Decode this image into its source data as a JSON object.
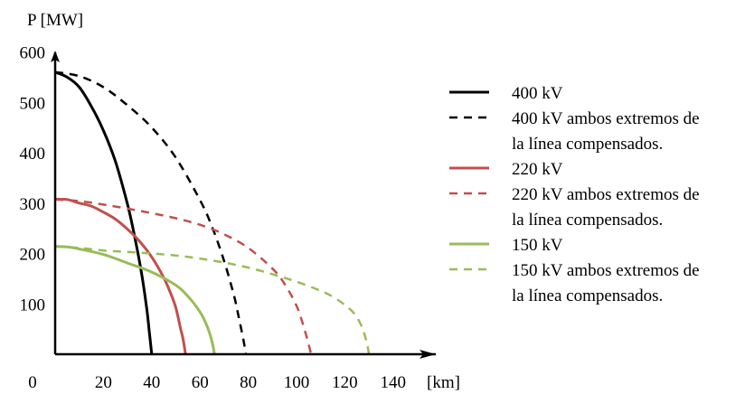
{
  "chart_data": {
    "type": "line",
    "title": "",
    "ylabel": "P [MW]",
    "xlabel": "[km]",
    "xlim": [
      0,
      150
    ],
    "ylim": [
      0,
      620
    ],
    "x_ticks": [
      0,
      20,
      40,
      60,
      80,
      100,
      120,
      140
    ],
    "y_ticks": [
      100,
      200,
      300,
      400,
      500,
      600
    ],
    "x_tick_labels": [
      "0",
      "20",
      "40",
      "60",
      "80",
      "100",
      "120",
      "140"
    ],
    "y_tick_labels": [
      "100",
      "200",
      "300",
      "400",
      "500",
      "600"
    ],
    "grid": false,
    "legend_position": "right",
    "series": [
      {
        "name": "400 kV",
        "color": "#000000",
        "dash": "solid",
        "legend_lines": [
          "400 kV"
        ],
        "x": [
          0,
          5,
          10,
          15,
          20,
          25,
          30,
          33,
          36,
          38,
          39,
          40
        ],
        "y": [
          560,
          550,
          530,
          492,
          444,
          382,
          297,
          232,
          155,
          88,
          45,
          0
        ]
      },
      {
        "name": "400 kV ambos extremos de la línea compensados.",
        "color": "#000000",
        "dash": "dashed",
        "legend_lines": [
          "400 kV ambos extremos de",
          "la línea compensados."
        ],
        "x": [
          0,
          10,
          20,
          30,
          40,
          50,
          60,
          65,
          70,
          74,
          76,
          78,
          79
        ],
        "y": [
          560,
          552,
          530,
          494,
          450,
          390,
          306,
          253,
          185,
          118,
          75,
          28,
          0
        ]
      },
      {
        "name": "220 kV",
        "color": "#c0504d",
        "dash": "solid",
        "legend_lines": [
          "220 kV"
        ],
        "x": [
          0,
          5,
          10,
          15,
          20,
          25,
          30,
          35,
          40,
          45,
          48,
          50,
          52,
          53,
          54
        ],
        "y": [
          308,
          307,
          300,
          294,
          282,
          268,
          248,
          224,
          193,
          152,
          119,
          92,
          50,
          30,
          0
        ]
      },
      {
        "name": "220 kV ambos extremos de la línea compensados.",
        "color": "#c0504d",
        "dash": "dashed",
        "legend_lines": [
          "220 kV ambos extremos de",
          "la línea compensados."
        ],
        "x": [
          0,
          10,
          20,
          30,
          40,
          50,
          60,
          70,
          80,
          90,
          95,
          100,
          103,
          105,
          106
        ],
        "y": [
          307,
          304,
          297,
          289,
          280,
          270,
          257,
          238,
          211,
          170,
          140,
          96,
          54,
          20,
          0
        ]
      },
      {
        "name": "150 kV",
        "color": "#9bbb59",
        "dash": "solid",
        "legend_lines": [
          "150 kV"
        ],
        "x": [
          0,
          5,
          10,
          20,
          30,
          40,
          50,
          55,
          60,
          63,
          65,
          66
        ],
        "y": [
          214,
          213,
          209,
          198,
          181,
          163,
          137,
          115,
          84,
          55,
          25,
          0
        ]
      },
      {
        "name": "150 kV ambos extremos de la línea compensados.",
        "color": "#9bbb59",
        "dash": "dashed",
        "legend_lines": [
          "150 kV ambos extremos de",
          "la línea compensados."
        ],
        "x": [
          0,
          10,
          20,
          30,
          40,
          50,
          60,
          70,
          80,
          90,
          100,
          110,
          115,
          120,
          124,
          127,
          129,
          130
        ],
        "y": [
          214,
          211,
          206,
          203,
          200,
          196,
          190,
          182,
          172,
          159,
          144,
          126,
          114,
          98,
          80,
          55,
          25,
          0
        ]
      }
    ]
  }
}
